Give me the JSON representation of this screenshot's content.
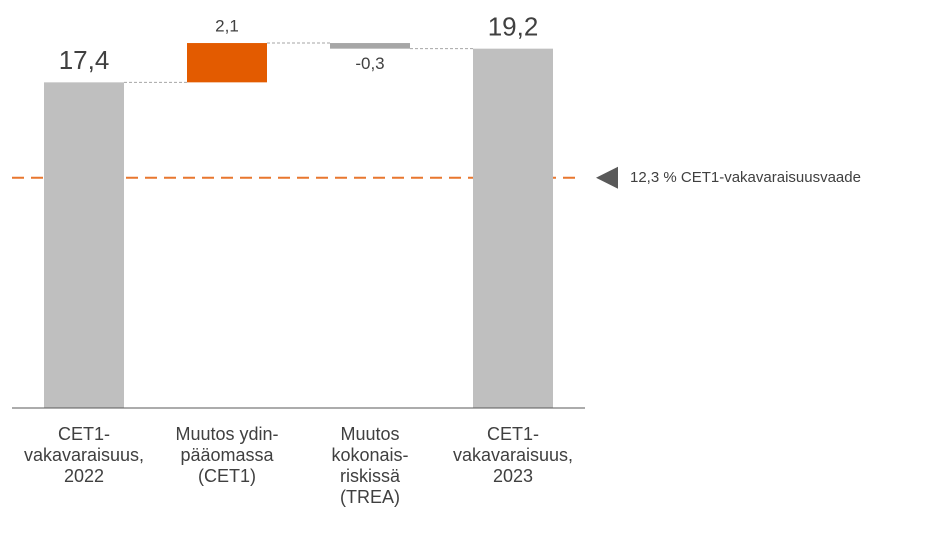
{
  "chart_data": {
    "type": "waterfall",
    "categories": [
      "CET1-\nvakavaraisuus,\n2022",
      "Muutos ydin-\npääomassa\n(CET1)",
      "Muutos\nkokonais-\nriskissä\n(TREA)",
      "CET1-\nvakavaraisuus,\n2023"
    ],
    "values": [
      17.4,
      2.1,
      -0.3,
      19.2
    ],
    "value_labels": [
      "17,4",
      "2,1",
      "-0,3",
      "19,2"
    ],
    "measures": [
      "absolute",
      "relative",
      "relative",
      "absolute"
    ],
    "colors": [
      "#bfbfbf",
      "#e35b00",
      "#a6a6a6",
      "#bfbfbf"
    ],
    "ylim": [
      0,
      21.8
    ],
    "threshold": {
      "value": 12.3,
      "label": "12,3 % CET1-vakavaraisuusvaade",
      "color": "#e8772e"
    }
  }
}
